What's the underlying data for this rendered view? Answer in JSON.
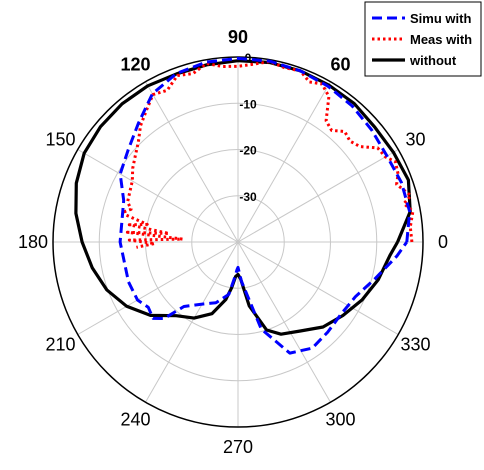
{
  "chart_data": {
    "type": "polar-line",
    "r_min": -40,
    "r_max": 0,
    "r_ticks": [
      {
        "value": 0,
        "label": "0"
      },
      {
        "value": -10,
        "label": "-10"
      },
      {
        "value": -20,
        "label": "-20"
      },
      {
        "value": -30,
        "label": "-30"
      }
    ],
    "angle_ticks": [
      {
        "angle": 0,
        "label": "0",
        "bold": false
      },
      {
        "angle": 30,
        "label": "30",
        "bold": false
      },
      {
        "angle": 60,
        "label": "60",
        "bold": true
      },
      {
        "angle": 90,
        "label": "90",
        "bold": true
      },
      {
        "angle": 120,
        "label": "120",
        "bold": true
      },
      {
        "angle": 150,
        "label": "150",
        "bold": false
      },
      {
        "angle": 180,
        "label": "180",
        "bold": false
      },
      {
        "angle": 210,
        "label": "210",
        "bold": false
      },
      {
        "angle": 240,
        "label": "240",
        "bold": false
      },
      {
        "angle": 270,
        "label": "270",
        "bold": false
      },
      {
        "angle": 300,
        "label": "300",
        "bold": false
      },
      {
        "angle": 330,
        "label": "330",
        "bold": false
      }
    ],
    "grid": true,
    "legend_position": "top-right",
    "series": [
      {
        "name": "Simu with",
        "color": "#0000ff",
        "style": "dashed",
        "points": [
          [
            0,
            -3.5
          ],
          [
            10,
            -2.3
          ],
          [
            20,
            -2.4
          ],
          [
            30,
            -2.8
          ],
          [
            40,
            -2.3
          ],
          [
            50,
            -1.6
          ],
          [
            60,
            -1.1
          ],
          [
            70,
            -0.6
          ],
          [
            80,
            -0.3
          ],
          [
            90,
            -0.3
          ],
          [
            100,
            -0.5
          ],
          [
            110,
            -1.2
          ],
          [
            120,
            -3.0
          ],
          [
            130,
            -6.5
          ],
          [
            140,
            -9.0
          ],
          [
            150,
            -10.6
          ],
          [
            160,
            -13.7
          ],
          [
            170,
            -14.5
          ],
          [
            180,
            -14.5
          ],
          [
            188,
            -15.0
          ],
          [
            200,
            -14.8
          ],
          [
            210,
            -14.9
          ],
          [
            216,
            -16.0
          ],
          [
            222,
            -15.3
          ],
          [
            226,
            -17.0
          ],
          [
            230,
            -21.8
          ],
          [
            240,
            -24.5
          ],
          [
            250,
            -26.0
          ],
          [
            260,
            -28.5
          ],
          [
            265,
            -32.5
          ],
          [
            268,
            -34.0
          ],
          [
            270,
            -34.5
          ],
          [
            275,
            -31.5
          ],
          [
            285,
            -20.5
          ],
          [
            295,
            -13.5
          ],
          [
            305,
            -12.0
          ],
          [
            315,
            -12.5
          ],
          [
            325,
            -12.8
          ],
          [
            335,
            -12.0
          ],
          [
            345,
            -9.3
          ],
          [
            355,
            -5.5
          ],
          [
            360,
            -3.5
          ]
        ]
      },
      {
        "name": "Meas with",
        "color": "#ff0000",
        "style": "dotted",
        "points": [
          [
            0,
            -2.4
          ],
          [
            5,
            -2.6
          ],
          [
            10,
            -1.6
          ],
          [
            13,
            -3.2
          ],
          [
            15,
            -1.3
          ],
          [
            20,
            -3.5
          ],
          [
            23,
            -2.4
          ],
          [
            27,
            -1.8
          ],
          [
            30,
            -3.2
          ],
          [
            34,
            -3.6
          ],
          [
            38,
            -6.5
          ],
          [
            42,
            -7.4
          ],
          [
            46,
            -6.8
          ],
          [
            50,
            -8.5
          ],
          [
            54,
            -7.6
          ],
          [
            58,
            -2.9
          ],
          [
            62,
            -1.3
          ],
          [
            66,
            -2.1
          ],
          [
            70,
            -0.6
          ],
          [
            75,
            -1.0
          ],
          [
            80,
            -0.4
          ],
          [
            85,
            -1.4
          ],
          [
            90,
            -2.0
          ],
          [
            95,
            -1.9
          ],
          [
            100,
            -0.8
          ],
          [
            105,
            -2.3
          ],
          [
            110,
            -1.7
          ],
          [
            115,
            -3.8
          ],
          [
            120,
            -3.2
          ],
          [
            125,
            -5.4
          ],
          [
            130,
            -7.2
          ],
          [
            135,
            -9.5
          ],
          [
            140,
            -11.0
          ],
          [
            145,
            -12.2
          ],
          [
            150,
            -13.6
          ],
          [
            155,
            -14.2
          ],
          [
            160,
            -14.6
          ],
          [
            163,
            -15.8
          ],
          [
            166,
            -14.0
          ],
          [
            169,
            -20.0
          ],
          [
            171,
            -16.2
          ],
          [
            173,
            -25.0
          ],
          [
            175,
            -16.0
          ],
          [
            177,
            -28.0
          ],
          [
            179,
            -16.5
          ],
          [
            181,
            -22.0
          ],
          [
            183,
            -18.0
          ]
        ]
      },
      {
        "name": "without",
        "color": "#000000",
        "style": "solid",
        "points": [
          [
            0,
            -5.5
          ],
          [
            10,
            -2.2
          ],
          [
            20,
            -0.8
          ],
          [
            30,
            -1.2
          ],
          [
            40,
            -1.4
          ],
          [
            50,
            -0.9
          ],
          [
            60,
            -0.8
          ],
          [
            70,
            -0.6
          ],
          [
            80,
            -0.6
          ],
          [
            90,
            -0.8
          ],
          [
            100,
            -1.1
          ],
          [
            110,
            -1.3
          ],
          [
            120,
            -1.0
          ],
          [
            130,
            -1.0
          ],
          [
            140,
            -1.2
          ],
          [
            150,
            -1.6
          ],
          [
            160,
            -2.8
          ],
          [
            170,
            -4.4
          ],
          [
            180,
            -6.3
          ],
          [
            190,
            -8.0
          ],
          [
            200,
            -9.8
          ],
          [
            210,
            -12.2
          ],
          [
            220,
            -15.3
          ],
          [
            230,
            -19.2
          ],
          [
            240,
            -21.0
          ],
          [
            250,
            -23.5
          ],
          [
            258,
            -27.3
          ],
          [
            262,
            -30.0
          ],
          [
            266,
            -32.5
          ],
          [
            270,
            -33.0
          ],
          [
            274,
            -32.0
          ],
          [
            280,
            -26.0
          ],
          [
            288,
            -20.0
          ],
          [
            295,
            -18.0
          ],
          [
            305,
            -16.5
          ],
          [
            315,
            -14.0
          ],
          [
            325,
            -12.3
          ],
          [
            335,
            -10.4
          ],
          [
            345,
            -8.6
          ],
          [
            355,
            -7.0
          ],
          [
            360,
            -5.5
          ]
        ]
      }
    ]
  }
}
